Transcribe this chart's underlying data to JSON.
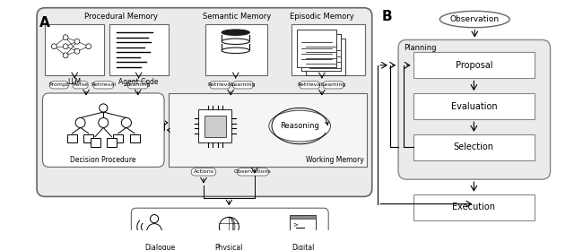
{
  "bg_color": "#ffffff",
  "label_A": "A",
  "label_B": "B",
  "proc_mem_label": "Procedural Memory",
  "sem_mem_label": "Semantic Memory",
  "epis_mem_label": "Episodic Memory",
  "llm_label": "LLM",
  "agent_label": "Agent Code",
  "decision_label": "Decision Procedure",
  "working_label": "Working Memory",
  "reasoning_label": "Reasoning",
  "dialogue_label": "Dialogue",
  "physical_label": "Physical",
  "digital_label": "Digital",
  "observation_label": "Observation",
  "planning_label": "Planning",
  "proposal_label": "Proposal",
  "evaluation_label": "Evaluation",
  "selection_label": "Selection",
  "execution_label": "Execution",
  "actions_label": "Actions",
  "observations_label": "Observations",
  "prompt_label": "Prompt",
  "parse_label": "Parse",
  "retrieval_label": "Retrieval",
  "learning_label": "Learning"
}
